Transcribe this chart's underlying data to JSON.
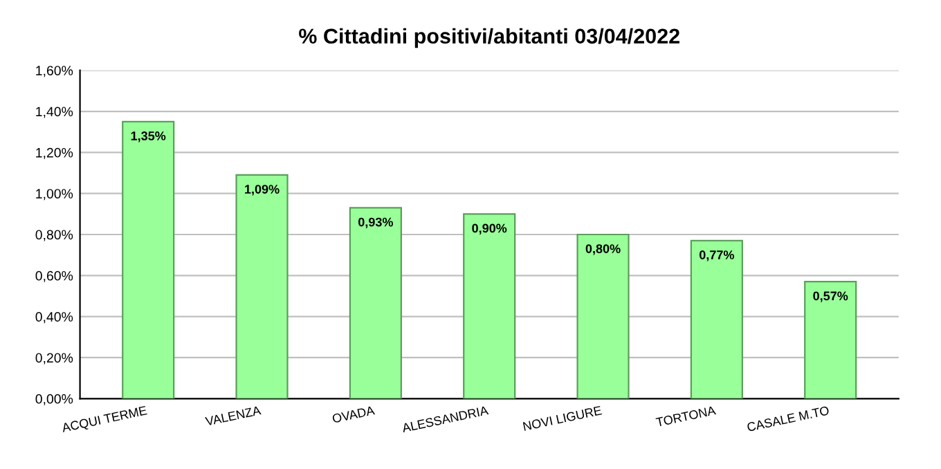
{
  "chart_data": {
    "type": "bar",
    "title": "% Cittadini positivi/abitanti 03/04/2022",
    "categories": [
      "ACQUI TERME",
      "VALENZA",
      "OVADA",
      "ALESSANDRIA",
      "NOVI LIGURE",
      "TORTONA",
      "CASALE M.TO"
    ],
    "values": [
      1.35,
      1.09,
      0.93,
      0.9,
      0.8,
      0.77,
      0.57
    ],
    "value_labels": [
      "1,35%",
      "1,09%",
      "0,93%",
      "0,90%",
      "0,80%",
      "0,77%",
      "0,57%"
    ],
    "color": "#99ff99",
    "ylim": [
      0,
      1.6
    ],
    "yticks": [
      {
        "value": 0,
        "label": "0,00%"
      },
      {
        "value": 0.2,
        "label": "0,20%"
      },
      {
        "value": 0.4,
        "label": "0,40%"
      },
      {
        "value": 0.6,
        "label": "0,60%"
      },
      {
        "value": 0.8,
        "label": "0,80%"
      },
      {
        "value": 1.0,
        "label": "1,00%"
      },
      {
        "value": 1.2,
        "label": "1,20%"
      },
      {
        "value": 1.4,
        "label": "1,40%"
      },
      {
        "value": 1.6,
        "label": "1,60%"
      }
    ],
    "grid": "y",
    "legend": false
  }
}
